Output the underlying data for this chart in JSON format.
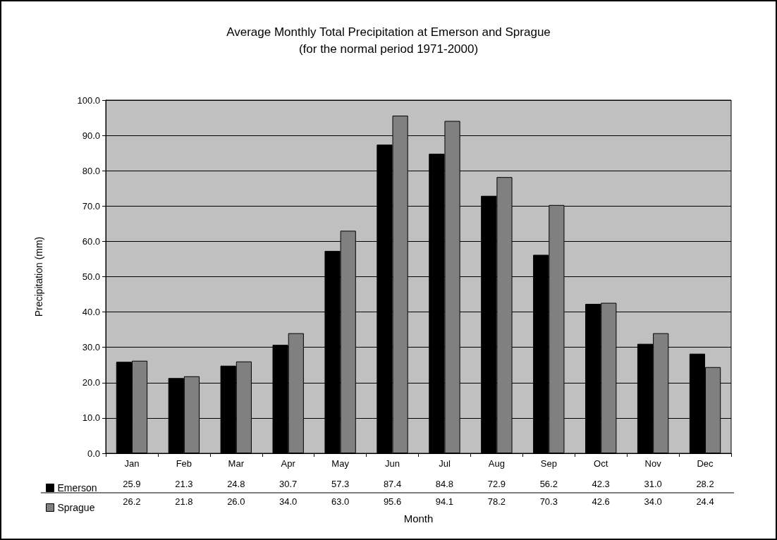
{
  "chart_data": {
    "type": "bar",
    "title": "Average Monthly Total Precipitation at Emerson and Sprague\n(for the normal period 1971-2000)",
    "xlabel": "Month",
    "ylabel": "Precipitation (mm)",
    "categories": [
      "Jan",
      "Feb",
      "Mar",
      "Apr",
      "May",
      "Jun",
      "Jul",
      "Aug",
      "Sep",
      "Oct",
      "Nov",
      "Dec"
    ],
    "series": [
      {
        "name": "Emerson",
        "color": "#000000",
        "values": [
          25.9,
          21.3,
          24.8,
          30.7,
          57.3,
          87.4,
          84.8,
          72.9,
          56.2,
          42.3,
          31.0,
          28.2
        ],
        "value_labels": [
          "25.9",
          "21.3",
          "24.8",
          "30.7",
          "57.3",
          "87.4",
          "84.8",
          "72.9",
          "56.2",
          "42.3",
          "31.0",
          "28.2"
        ]
      },
      {
        "name": "Sprague",
        "color": "#808080",
        "values": [
          26.2,
          21.8,
          26.0,
          34.0,
          63.0,
          95.6,
          94.1,
          78.2,
          70.3,
          42.6,
          34.0,
          24.4
        ],
        "value_labels": [
          "26.2",
          "21.8",
          "26.0",
          "34.0",
          "63.0",
          "95.6",
          "94.1",
          "78.2",
          "70.3",
          "42.6",
          "34.0",
          "24.4"
        ]
      }
    ],
    "ylim": [
      0,
      100
    ],
    "yticks": [
      {
        "value": 0,
        "label": "0.0"
      },
      {
        "value": 10,
        "label": "10.0"
      },
      {
        "value": 20,
        "label": "20.0"
      },
      {
        "value": 30,
        "label": "30.0"
      },
      {
        "value": 40,
        "label": "40.0"
      },
      {
        "value": 50,
        "label": "50.0"
      },
      {
        "value": 60,
        "label": "60.0"
      },
      {
        "value": 70,
        "label": "70.0"
      },
      {
        "value": 80,
        "label": "80.0"
      },
      {
        "value": 90,
        "label": "90.0"
      },
      {
        "value": 100,
        "label": "100.0"
      }
    ],
    "grid": "y",
    "legend": "bottom left"
  }
}
